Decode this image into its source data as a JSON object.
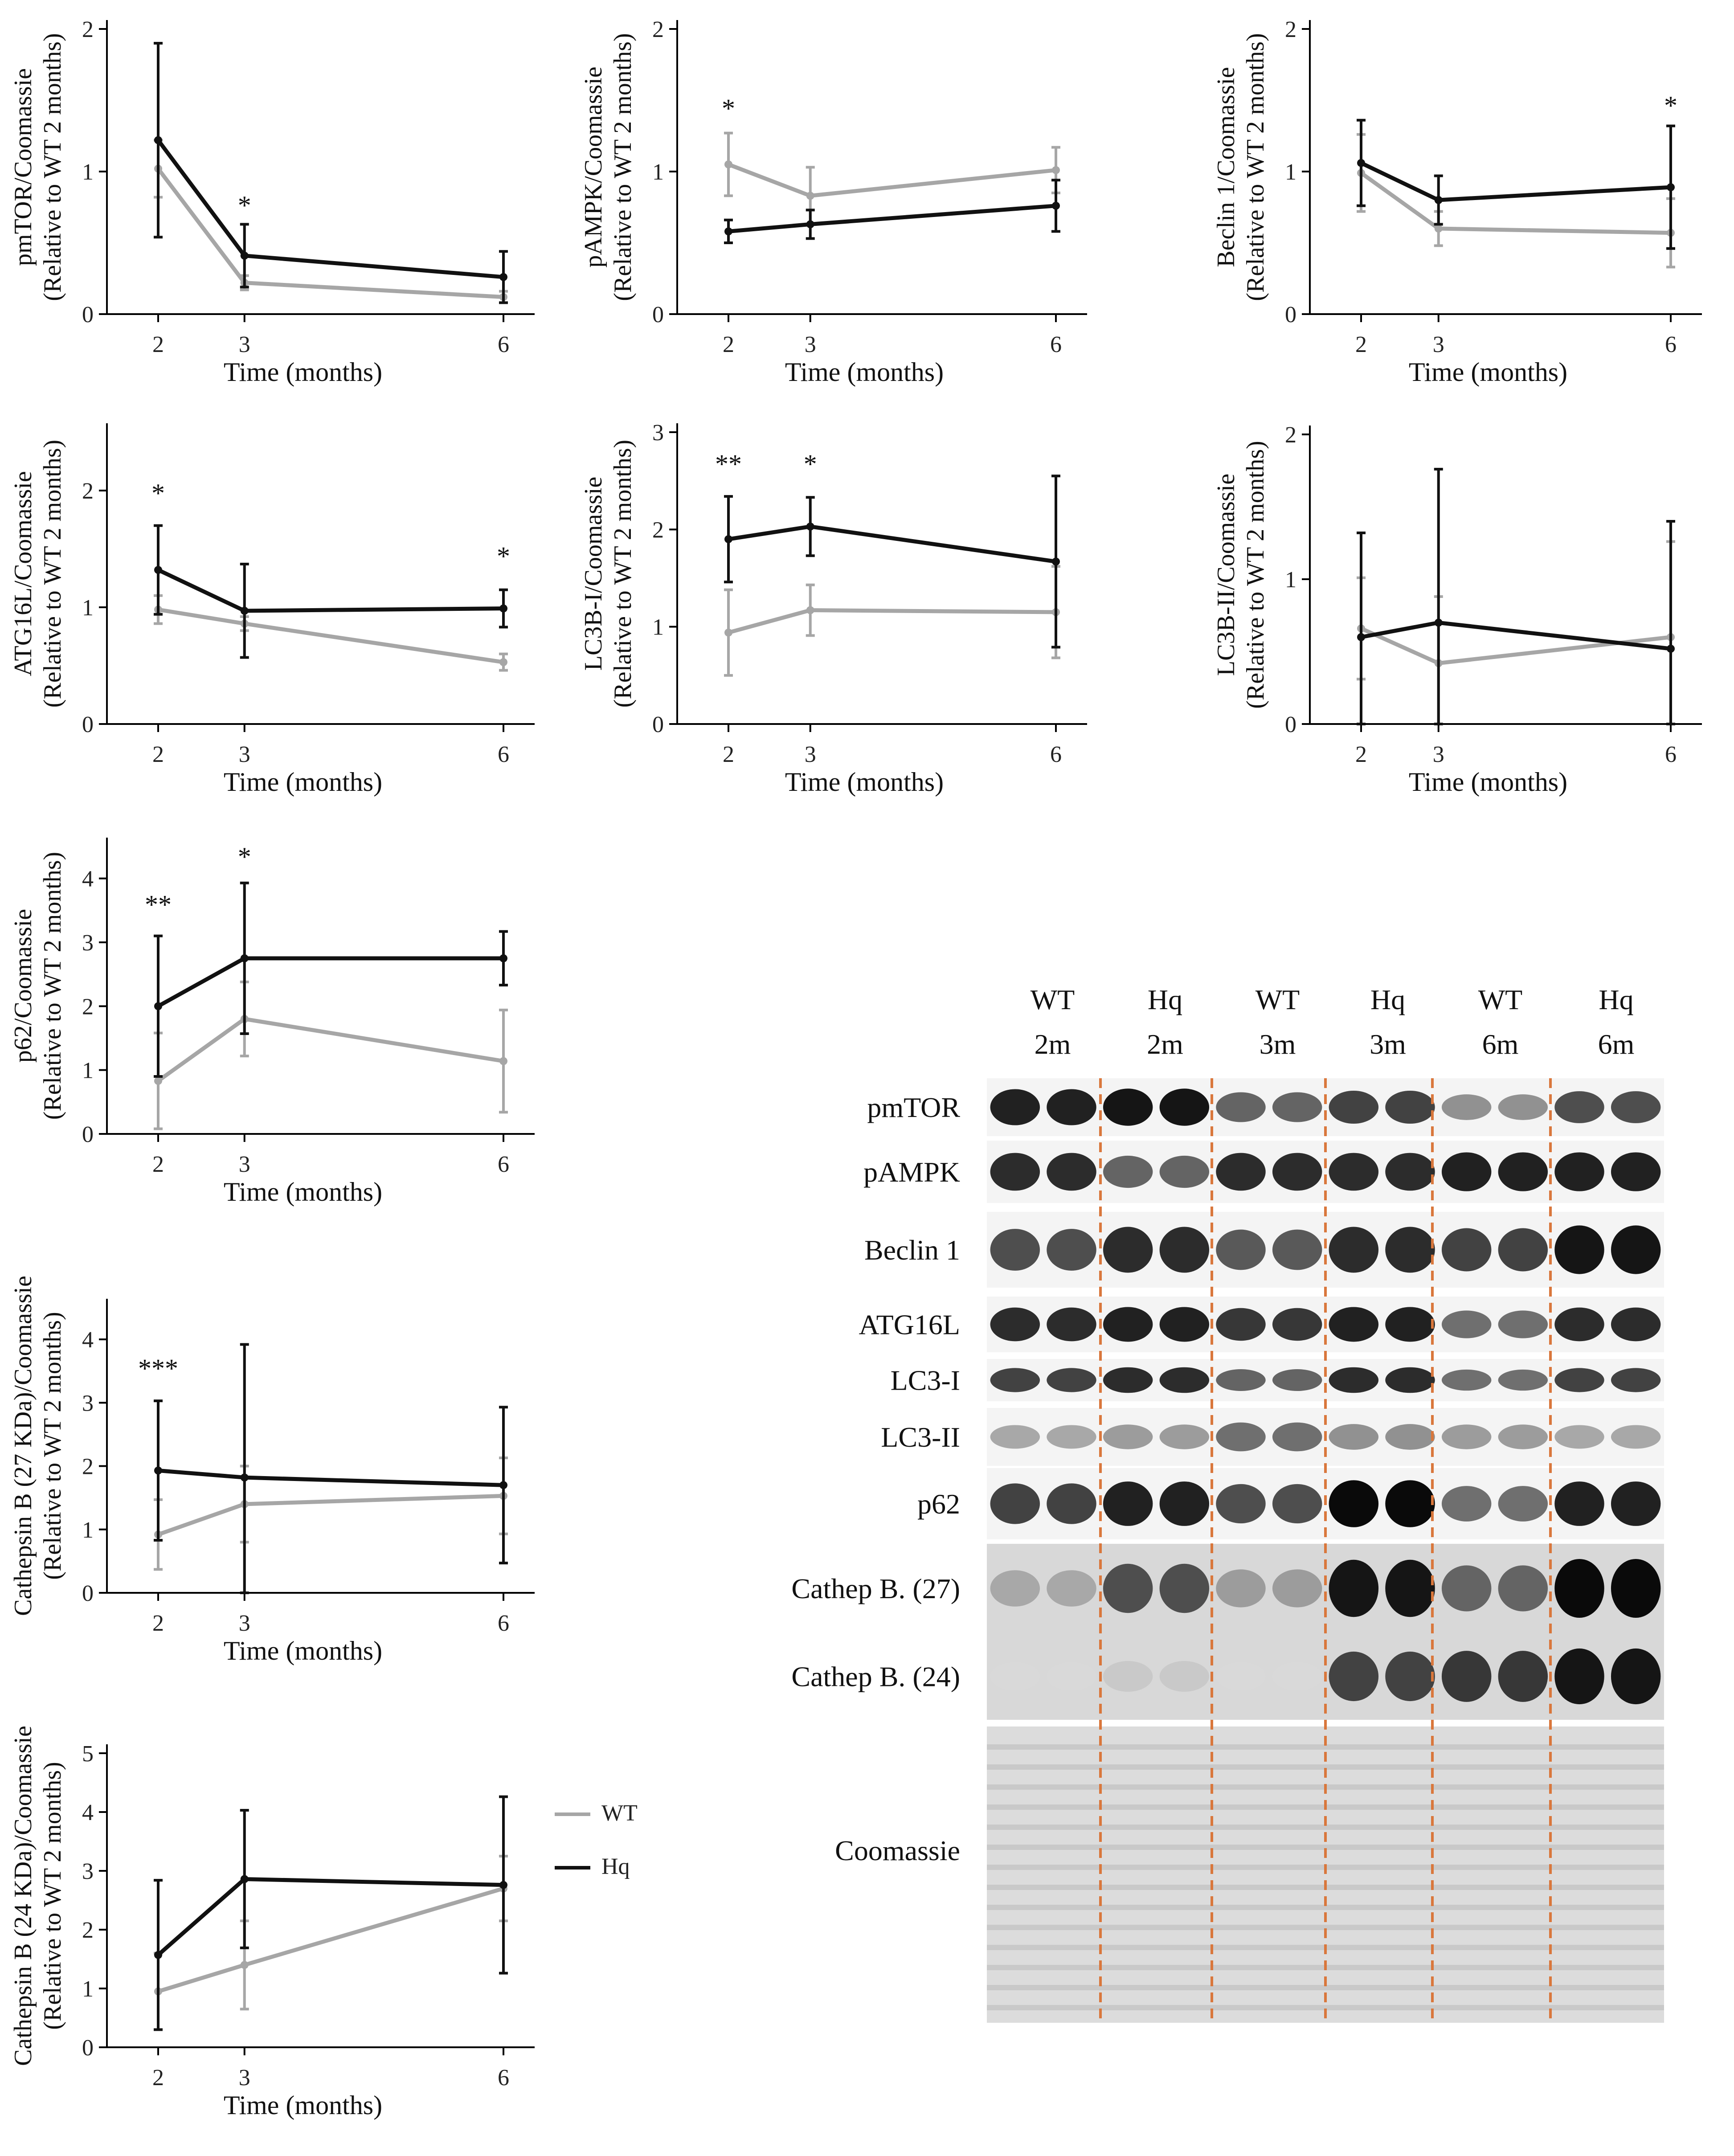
{
  "colors": {
    "WT": "#a6a6a6",
    "Hq": "#111111",
    "axis": "#000000",
    "divider": "#d9773c"
  },
  "legend": {
    "wt": "WT",
    "hq": "Hq"
  },
  "chart_data": [
    {
      "type": "line",
      "id": "pmtor",
      "ylabel": [
        "pmTOR/Coomassie",
        "(Relative to WT 2 months)"
      ],
      "xlabel": "Time (months)",
      "x": [
        2,
        3,
        6
      ],
      "ylim": [
        0,
        2
      ],
      "yticks": [
        0,
        1,
        2
      ],
      "series": [
        {
          "name": "WT",
          "values": [
            1.02,
            0.22,
            0.12
          ],
          "err": [
            0.2,
            0.05,
            0.04
          ]
        },
        {
          "name": "Hq",
          "values": [
            1.22,
            0.41,
            0.26
          ],
          "err": [
            0.68,
            0.22,
            0.18
          ]
        }
      ],
      "annotations": [
        {
          "x": 3,
          "y": 0.7,
          "text": "*"
        }
      ]
    },
    {
      "type": "line",
      "id": "pampk",
      "ylabel": [
        "pAMPK/Coomassie",
        "(Relative to WT 2 months)"
      ],
      "xlabel": "Time (months)",
      "x": [
        2,
        3,
        6
      ],
      "ylim": [
        0,
        2
      ],
      "yticks": [
        0,
        1,
        2
      ],
      "series": [
        {
          "name": "WT",
          "values": [
            1.05,
            0.83,
            1.01
          ],
          "err": [
            0.22,
            0.2,
            0.16
          ]
        },
        {
          "name": "Hq",
          "values": [
            0.58,
            0.63,
            0.76
          ],
          "err": [
            0.08,
            0.1,
            0.18
          ]
        }
      ],
      "annotations": [
        {
          "x": 2,
          "y": 1.38,
          "text": "*"
        }
      ]
    },
    {
      "type": "line",
      "id": "beclin",
      "ylabel": [
        "Beclin 1/Coomassie",
        "(Relative to WT 2 months)"
      ],
      "xlabel": "Time (months)",
      "x": [
        2,
        3,
        6
      ],
      "ylim": [
        0,
        2
      ],
      "yticks": [
        0,
        1,
        2
      ],
      "series": [
        {
          "name": "WT",
          "values": [
            0.99,
            0.6,
            0.57
          ],
          "err": [
            0.27,
            0.12,
            0.24
          ]
        },
        {
          "name": "Hq",
          "values": [
            1.06,
            0.8,
            0.89
          ],
          "err": [
            0.3,
            0.17,
            0.43
          ]
        }
      ],
      "annotations": [
        {
          "x": 6,
          "y": 1.4,
          "text": "*"
        }
      ]
    },
    {
      "type": "line",
      "id": "atg16l",
      "ylabel": [
        "ATG16L/Coomassie",
        "(Relative to WT 2 months)"
      ],
      "xlabel": "Time (months)",
      "x": [
        2,
        3,
        6
      ],
      "ylim": [
        0,
        2.5
      ],
      "yticks": [
        0,
        1,
        2
      ],
      "series": [
        {
          "name": "WT",
          "values": [
            0.98,
            0.86,
            0.53
          ],
          "err": [
            0.12,
            0.06,
            0.07
          ]
        },
        {
          "name": "Hq",
          "values": [
            1.32,
            0.97,
            0.99
          ],
          "err": [
            0.38,
            0.4,
            0.16
          ]
        }
      ],
      "annotations": [
        {
          "x": 2,
          "y": 1.9,
          "text": "*"
        },
        {
          "x": 6,
          "y": 1.36,
          "text": "*"
        }
      ]
    },
    {
      "type": "line",
      "id": "lc3b1",
      "ylabel": [
        "LC3B-I/Coomassie",
        "(Relative to WT 2 months)"
      ],
      "xlabel": "Time (months)",
      "x": [
        2,
        3,
        6
      ],
      "ylim": [
        0,
        3
      ],
      "yticks": [
        0,
        1,
        2,
        3
      ],
      "series": [
        {
          "name": "WT",
          "values": [
            0.94,
            1.17,
            1.15
          ],
          "err": [
            0.44,
            0.26,
            0.47
          ]
        },
        {
          "name": "Hq",
          "values": [
            1.9,
            2.03,
            1.67
          ],
          "err": [
            0.44,
            0.3,
            0.88
          ]
        }
      ],
      "annotations": [
        {
          "x": 2,
          "y": 2.58,
          "text": "**"
        },
        {
          "x": 3,
          "y": 2.58,
          "text": "*"
        }
      ]
    },
    {
      "type": "line",
      "id": "lc3b2",
      "ylabel": [
        "LC3B-II/Coomassie",
        "(Relative to WT 2 months)"
      ],
      "xlabel": "Time (months)",
      "x": [
        2,
        3,
        6
      ],
      "ylim": [
        0,
        2
      ],
      "yticks": [
        0,
        1,
        2
      ],
      "series": [
        {
          "name": "WT",
          "values": [
            0.66,
            0.42,
            0.6
          ],
          "err": [
            0.35,
            0.46,
            0.66
          ]
        },
        {
          "name": "Hq",
          "values": [
            0.6,
            0.7,
            0.52
          ],
          "err": [
            0.72,
            1.06,
            0.88
          ]
        }
      ],
      "annotations": []
    },
    {
      "type": "line",
      "id": "p62",
      "ylabel": [
        "p62/Coomassie",
        "(Relative to WT 2 months)"
      ],
      "xlabel": "Time (months)",
      "x": [
        2,
        3,
        6
      ],
      "ylim": [
        0,
        4.5
      ],
      "yticks": [
        0,
        1,
        2,
        3,
        4
      ],
      "series": [
        {
          "name": "WT",
          "values": [
            0.83,
            1.8,
            1.14
          ],
          "err": [
            0.75,
            0.58,
            0.8
          ]
        },
        {
          "name": "Hq",
          "values": [
            2.0,
            2.75,
            2.75
          ],
          "err": [
            1.1,
            1.18,
            0.42
          ]
        }
      ],
      "annotations": [
        {
          "x": 2,
          "y": 3.45,
          "text": "**"
        },
        {
          "x": 3,
          "y": 4.2,
          "text": "*"
        }
      ]
    },
    {
      "type": "line",
      "id": "cathb27",
      "ylabel": [
        "Cathepsin B (27 KDa)/Coomassie",
        "(Relative to WT 2 months)"
      ],
      "xlabel": "Time (months)",
      "x": [
        2,
        3,
        6
      ],
      "ylim": [
        0,
        4.5
      ],
      "yticks": [
        0,
        1,
        2,
        3,
        4
      ],
      "series": [
        {
          "name": "WT",
          "values": [
            0.92,
            1.4,
            1.53
          ],
          "err": [
            0.55,
            0.6,
            0.6
          ]
        },
        {
          "name": "Hq",
          "values": [
            1.93,
            1.82,
            1.7
          ],
          "err": [
            1.1,
            2.1,
            1.23
          ]
        }
      ],
      "annotations": [
        {
          "x": 2,
          "y": 3.4,
          "text": "***"
        }
      ]
    },
    {
      "type": "line",
      "id": "cathb24",
      "ylabel": [
        "Cathepsin B (24 KDa)/Coomassie",
        "(Relative to WT 2 months)"
      ],
      "xlabel": "Time (months)",
      "x": [
        2,
        3,
        6
      ],
      "ylim": [
        0,
        5
      ],
      "yticks": [
        0,
        1,
        2,
        3,
        4,
        5
      ],
      "series": [
        {
          "name": "WT",
          "values": [
            0.95,
            1.4,
            2.7
          ],
          "err": [
            0.65,
            0.75,
            0.55
          ]
        },
        {
          "name": "Hq",
          "values": [
            1.57,
            2.86,
            2.76
          ],
          "err": [
            1.27,
            1.17,
            1.5
          ]
        }
      ],
      "annotations": []
    }
  ],
  "blot": {
    "lane_groups": [
      {
        "genotype": "WT",
        "age": "2m"
      },
      {
        "genotype": "Hq",
        "age": "2m"
      },
      {
        "genotype": "WT",
        "age": "3m"
      },
      {
        "genotype": "Hq",
        "age": "3m"
      },
      {
        "genotype": "WT",
        "age": "6m"
      },
      {
        "genotype": "Hq",
        "age": "6m"
      }
    ],
    "rows": [
      {
        "label": "pmTOR",
        "intensity": [
          0.9,
          0.95,
          0.6,
          0.75,
          0.4,
          0.7
        ]
      },
      {
        "label": "pAMPK",
        "intensity": [
          0.85,
          0.6,
          0.85,
          0.85,
          0.9,
          0.9
        ]
      },
      {
        "label": "Beclin 1",
        "intensity": [
          0.7,
          0.85,
          0.65,
          0.85,
          0.75,
          0.95
        ]
      },
      {
        "label": "ATG16L",
        "intensity": [
          0.85,
          0.9,
          0.8,
          0.9,
          0.55,
          0.85
        ]
      },
      {
        "label": "LC3-I",
        "intensity": [
          0.75,
          0.85,
          0.6,
          0.85,
          0.55,
          0.75
        ]
      },
      {
        "label": "LC3-II",
        "intensity": [
          0.3,
          0.35,
          0.55,
          0.4,
          0.35,
          0.3
        ]
      },
      {
        "label": "p62",
        "intensity": [
          0.75,
          0.9,
          0.7,
          1.0,
          0.55,
          0.9
        ]
      },
      {
        "label": "Cathep B. (27)",
        "intensity": [
          0.3,
          0.7,
          0.35,
          0.95,
          0.6,
          1.0
        ]
      },
      {
        "label": "Cathep B. (24)",
        "intensity": [
          0.08,
          0.15,
          0.08,
          0.75,
          0.8,
          0.95
        ]
      },
      {
        "label": "Coomassie",
        "intensity": [
          0.35,
          0.35,
          0.35,
          0.35,
          0.35,
          0.35
        ]
      }
    ]
  }
}
